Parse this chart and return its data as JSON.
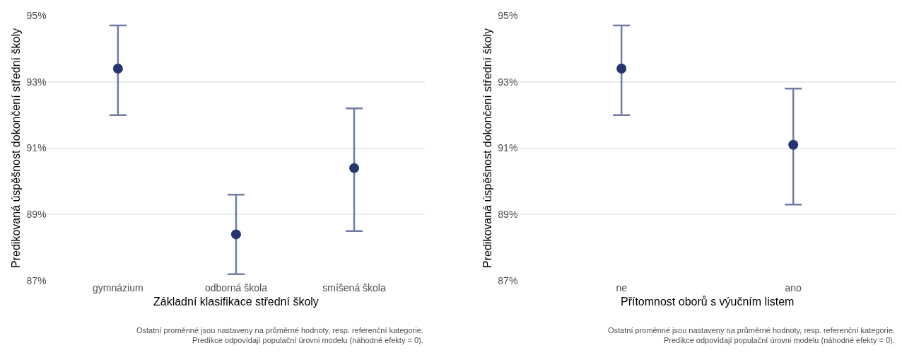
{
  "chart_data": [
    {
      "type": "scatter",
      "xlabel": "Základní klasifikace střední školy",
      "ylabel": "Predikovaná úspěšnost dokončení střední školy",
      "categories": [
        "gymnázium",
        "odborná škola",
        "smíšená škola"
      ],
      "series": [
        {
          "color": "#243570",
          "values": [
            93.4,
            88.4,
            90.4
          ],
          "errors": [
            [
              92.0,
              94.7
            ],
            [
              87.2,
              89.6
            ],
            [
              88.5,
              92.2
            ]
          ]
        }
      ],
      "ylim": [
        87,
        95
      ],
      "yticks": [
        {
          "value": 87,
          "label": "87%"
        },
        {
          "value": 89,
          "label": "89%"
        },
        {
          "value": 91,
          "label": "91%"
        },
        {
          "value": 93,
          "label": "93%"
        },
        {
          "value": 95,
          "label": "95%"
        }
      ],
      "grid": "y",
      "marker": "circle",
      "annotations": [
        "Ostatní proměnné jsou nastaveny na průměrné hodnoty, resp. referenční kategorie.\nPredikce odpovídají populační úrovni modelu (náhodné efekty = 0)."
      ]
    },
    {
      "type": "scatter",
      "xlabel": "Přítomnost oborů s výučním listem",
      "ylabel": "Predikovaná úspěšnost dokončení střední školy",
      "categories": [
        "ne",
        "ano"
      ],
      "series": [
        {
          "color": "#243570",
          "values": [
            93.4,
            91.1
          ],
          "errors": [
            [
              92.0,
              94.7
            ],
            [
              89.3,
              92.8
            ]
          ]
        }
      ],
      "ylim": [
        87,
        95
      ],
      "yticks": [
        {
          "value": 87,
          "label": "87%"
        },
        {
          "value": 89,
          "label": "89%"
        },
        {
          "value": 91,
          "label": "91%"
        },
        {
          "value": 93,
          "label": "93%"
        },
        {
          "value": 95,
          "label": "95%"
        }
      ],
      "grid": "y",
      "marker": "circle",
      "annotations": [
        "Ostatní proměnné jsou nastaveny na průměrné hodnoty, resp. referenční kategorie.\nPredikce odpovídají populační úrovni modelu (náhodné efekty = 0)."
      ]
    }
  ]
}
